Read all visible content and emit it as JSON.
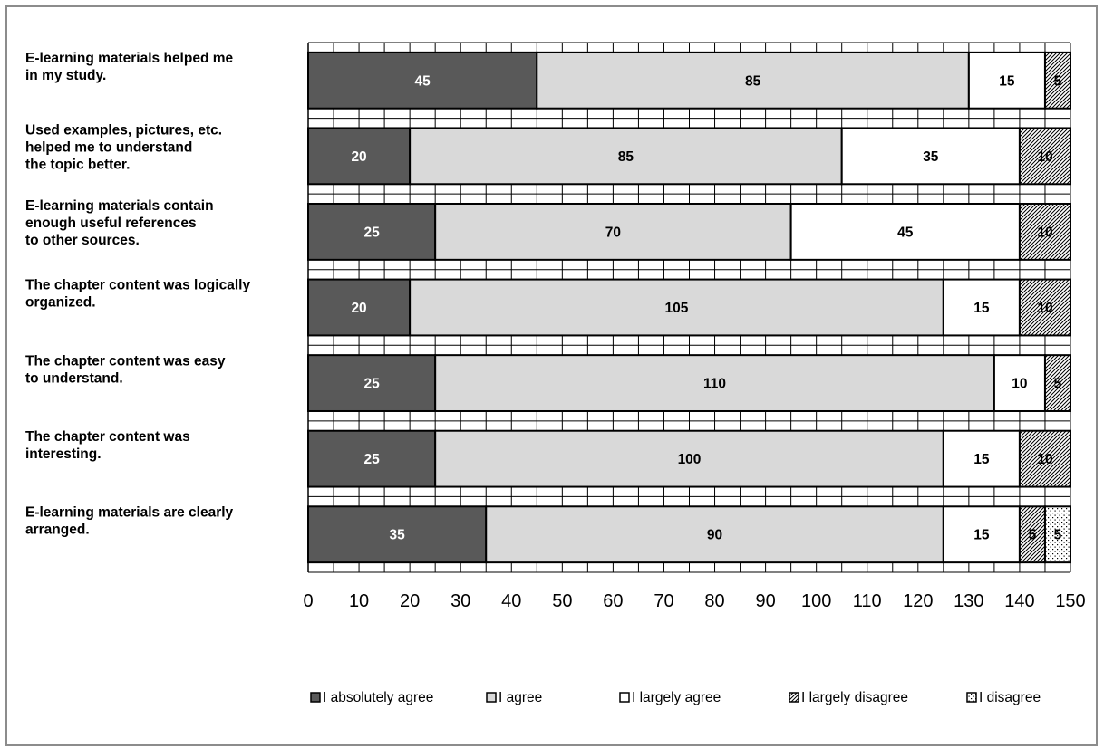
{
  "chart_data": {
    "type": "bar",
    "orientation": "horizontal",
    "stacked": true,
    "categories": [
      [
        "E-learning materials helped me",
        "in my study."
      ],
      [
        "Used examples, pictures, etc.",
        "helped me to understand",
        "the topic better."
      ],
      [
        "E-learning materials contain",
        "enough useful references",
        "to other sources."
      ],
      [
        "The chapter content was logically",
        "organized."
      ],
      [
        "The chapter content was easy",
        "to understand."
      ],
      [
        "The chapter content was",
        "interesting."
      ],
      [
        "E-learning materials are clearly",
        "arranged."
      ]
    ],
    "series": [
      {
        "name": "I absolutely agree",
        "values": [
          45,
          20,
          25,
          20,
          25,
          25,
          35
        ],
        "color": "#595959",
        "label_color": "#ffffff",
        "pattern": "solid"
      },
      {
        "name": "I agree",
        "values": [
          85,
          85,
          70,
          105,
          110,
          100,
          90
        ],
        "color": "#d9d9d9",
        "label_color": "#000000",
        "pattern": "solid"
      },
      {
        "name": "I largely agree",
        "values": [
          15,
          35,
          45,
          15,
          10,
          15,
          15
        ],
        "color": "#ffffff",
        "label_color": "#000000",
        "pattern": "solid"
      },
      {
        "name": "I largely disagree",
        "values": [
          5,
          10,
          10,
          10,
          5,
          10,
          5
        ],
        "color": "#ffffff",
        "label_color": "#000000",
        "pattern": "diagonal-hatch"
      },
      {
        "name": "I disagree",
        "values": [
          0,
          0,
          0,
          0,
          0,
          0,
          5
        ],
        "color": "#ffffff",
        "label_color": "#000000",
        "pattern": "dots"
      }
    ],
    "xlim": [
      0,
      150
    ],
    "xticks": [
      0,
      10,
      20,
      30,
      40,
      50,
      60,
      70,
      80,
      90,
      100,
      110,
      120,
      130,
      140,
      150
    ],
    "grid": true,
    "legend_position": "bottom"
  }
}
